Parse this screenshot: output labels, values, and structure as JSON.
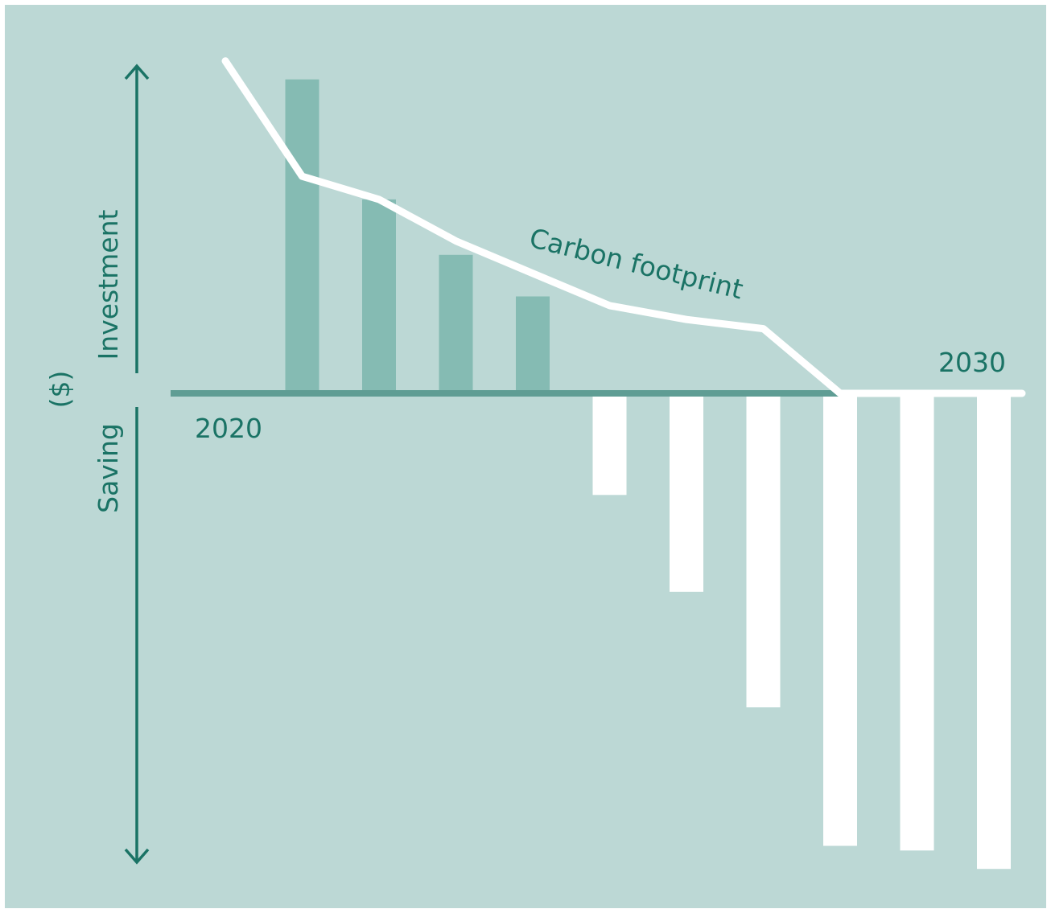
{
  "colors": {
    "background": "#bcd8d5",
    "axis": "#1a7365",
    "baseline": "#5f9d94",
    "investment_bar": "#85bbb3",
    "saving_bar": "#ffffff",
    "footprint_line": "#ffffff",
    "text": "#1a7365"
  },
  "labels": {
    "investment": "Investment",
    "saving": "Saving",
    "currency": "($)",
    "start_year": "2020",
    "end_year": "2030",
    "line_label": "Carbon footprint"
  },
  "chart_data": {
    "type": "bar",
    "title": "",
    "ylabel": "($)",
    "x_start_label": "2020",
    "x_end_label": "2030",
    "x": [
      1,
      2,
      3,
      4,
      5,
      6,
      7,
      8,
      9,
      10
    ],
    "ylim": [
      -100,
      70
    ],
    "series": [
      {
        "values": [
          68,
          42,
          30,
          21,
          -22,
          -43,
          -68,
          -98,
          -99,
          -103
        ]
      },
      {
        "name": "Carbon footprint",
        "type": "line",
        "x": [
          0,
          1,
          2,
          3,
          4,
          5,
          6,
          7,
          8,
          9,
          10
        ],
        "values": [
          72,
          47,
          42,
          33,
          26,
          19,
          16,
          14,
          0,
          0,
          0
        ]
      }
    ],
    "grid": false
  }
}
